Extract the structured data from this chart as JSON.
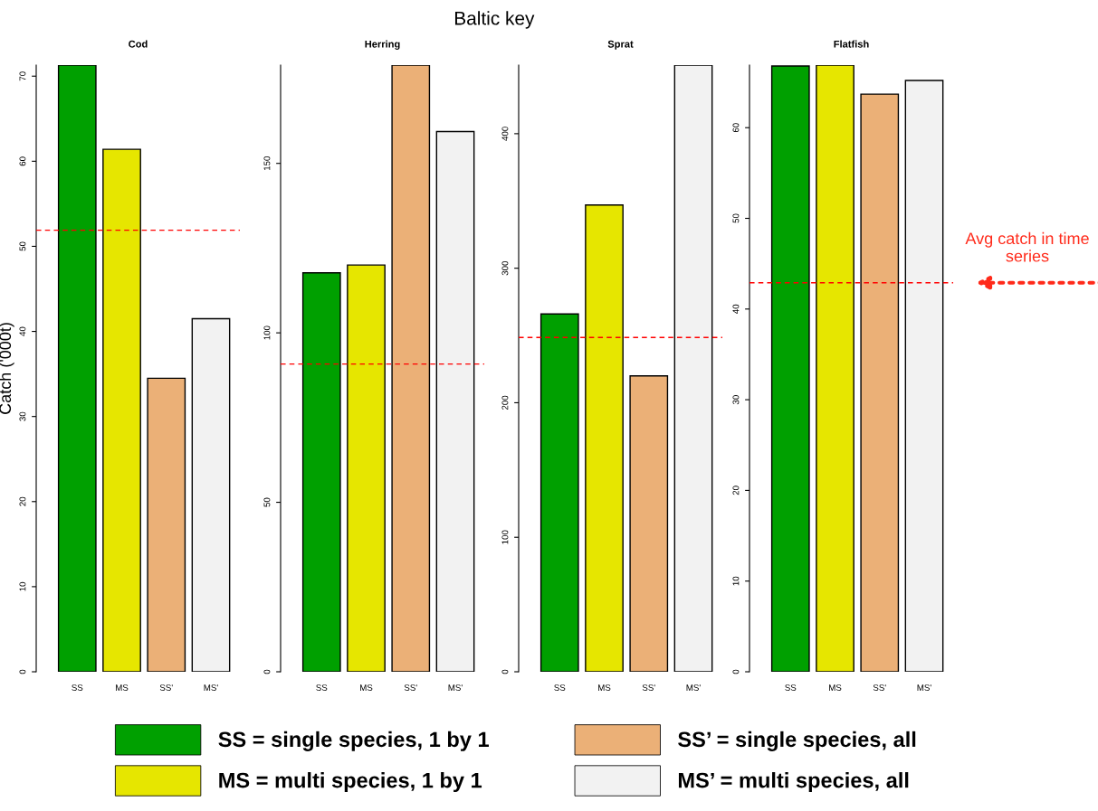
{
  "chart_data": [
    {
      "type": "bar",
      "title": "Cod",
      "ylabel": "Catch ('000t)",
      "annotations": [
        "Baltic key"
      ],
      "categories": [
        "SS",
        "MS",
        "SS'",
        "MS'"
      ],
      "legend": "bottom",
      "series": [
        {
          "name": "SS = single species, 1 by 1",
          "color": "#00a000",
          "values": [
            71.3,
            null,
            null,
            null
          ]
        },
        {
          "name": "MS = multi species, 1 by 1",
          "color": "#e6e600",
          "values": [
            null,
            61.4,
            null,
            null
          ]
        },
        {
          "name": "SS’ = single species, all",
          "color": "#ebb077",
          "values": [
            null,
            null,
            34.5,
            null
          ]
        },
        {
          "name": "MS’ = multi species, all",
          "color": "#f2f2f2",
          "values": [
            null,
            null,
            null,
            41.5
          ]
        }
      ],
      "ylim": [
        0,
        71.3
      ],
      "yticks": [
        0,
        10,
        20,
        30,
        40,
        50,
        60,
        70
      ],
      "ref_lines": [
        {
          "axis": "y",
          "value": 51.9,
          "color": "#ff0000",
          "line_style": "dashed"
        }
      ]
    },
    {
      "type": "bar",
      "title": "Herring",
      "categories": [
        "SS",
        "MS",
        "SS'",
        "MS'"
      ],
      "series": [
        {
          "color": "#00a000",
          "values": [
            117.7,
            null,
            null,
            null
          ]
        },
        {
          "color": "#e6e600",
          "values": [
            null,
            120.0,
            null,
            null
          ]
        },
        {
          "color": "#ebb077",
          "values": [
            null,
            null,
            179.0,
            null
          ]
        },
        {
          "color": "#f2f2f2",
          "values": [
            null,
            null,
            null,
            159.4
          ]
        }
      ],
      "ylim": [
        0,
        179.0
      ],
      "yticks": [
        0,
        50,
        100,
        150
      ],
      "ref_lines": [
        {
          "axis": "y",
          "value": 90.8,
          "color": "#ff0000",
          "line_style": "dashed"
        }
      ]
    },
    {
      "type": "bar",
      "title": "Sprat",
      "categories": [
        "SS",
        "MS",
        "SS'",
        "MS'"
      ],
      "series": [
        {
          "color": "#00a000",
          "values": [
            266,
            null,
            null,
            null
          ]
        },
        {
          "color": "#e6e600",
          "values": [
            null,
            347,
            null,
            null
          ]
        },
        {
          "color": "#ebb077",
          "values": [
            null,
            null,
            220,
            null
          ]
        },
        {
          "color": "#f2f2f2",
          "values": [
            null,
            null,
            null,
            451
          ]
        }
      ],
      "ylim": [
        0,
        451
      ],
      "yticks": [
        0,
        100,
        200,
        300,
        400
      ],
      "ref_lines": [
        {
          "axis": "y",
          "value": 248.5,
          "color": "#ff0000",
          "line_style": "dashed"
        }
      ]
    },
    {
      "type": "bar",
      "title": "Flatfish",
      "categories": [
        "SS",
        "MS",
        "SS'",
        "MS'"
      ],
      "annotations": [
        "Avg catch in time series"
      ],
      "series": [
        {
          "color": "#00a000",
          "values": [
            66.8,
            null,
            null,
            null
          ]
        },
        {
          "color": "#e6e600",
          "values": [
            null,
            66.9,
            null,
            null
          ]
        },
        {
          "color": "#ebb077",
          "values": [
            null,
            null,
            63.7,
            null
          ]
        },
        {
          "color": "#f2f2f2",
          "values": [
            null,
            null,
            null,
            65.2
          ]
        }
      ],
      "ylim": [
        0,
        66.9
      ],
      "yticks": [
        0,
        10,
        20,
        30,
        40,
        50,
        60
      ],
      "ref_lines": [
        {
          "axis": "y",
          "value": 42.9,
          "color": "#ff0000",
          "line_style": "dashed"
        }
      ]
    }
  ]
}
